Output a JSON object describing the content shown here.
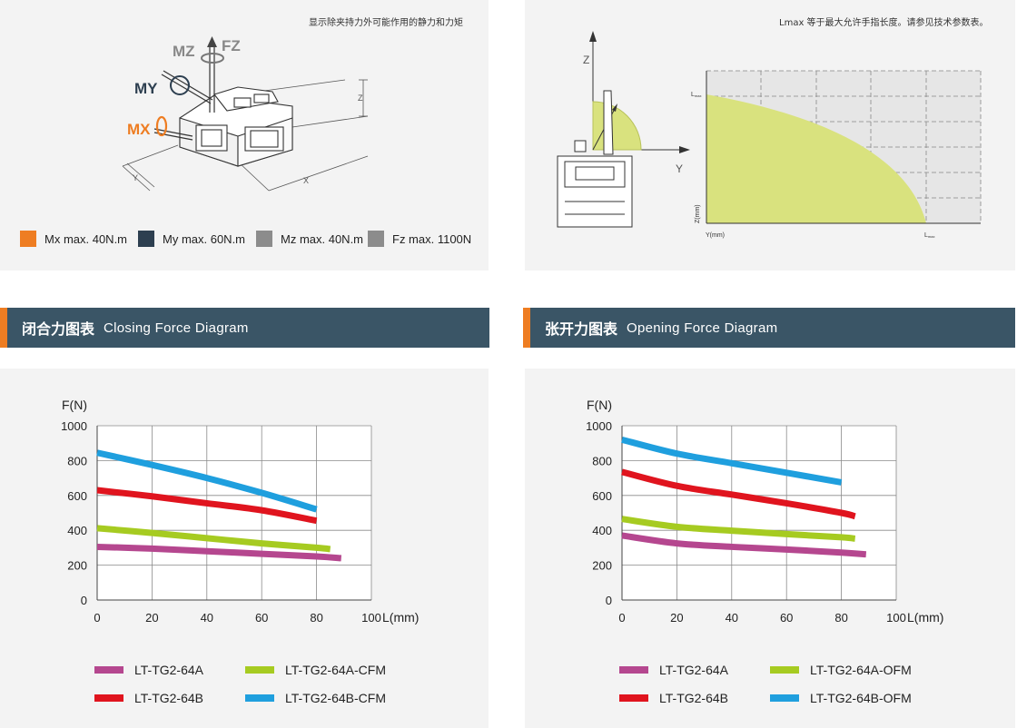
{
  "top_left": {
    "note": "显示除夹持力外可能作用的静力和力矩",
    "diagram_labels": {
      "mz": "MZ",
      "fz": "FZ",
      "my": "MY",
      "mx": "MX",
      "z": "Z",
      "y": "Y",
      "x": "X"
    },
    "legend": [
      {
        "label": "Mx max. 40N.m",
        "color": "#ee7d22"
      },
      {
        "label": "My max. 60N.m",
        "color": "#2d3f50"
      },
      {
        "label": "Mz max. 40N.m",
        "color": "#8c8c8c"
      },
      {
        "label": "Fz max. 1100N",
        "color": "#8c8c8c"
      }
    ]
  },
  "top_right": {
    "note": "Lmax 等于最大允许手指长度。请参见技术参数表。",
    "axis_z": "Z",
    "axis_y": "Y",
    "label_lmax_top": "L",
    "label_lmax_top_sub": "max",
    "label_lmax_right": "L",
    "label_lmax_right_sub": "max",
    "ylabel": "Z(mm)",
    "xlabel": "Y(mm)",
    "area_color": "#d9e27e"
  },
  "sections": {
    "closing": {
      "title_cn": "闭合力图表",
      "title_en": "Closing Force Diagram"
    },
    "opening": {
      "title_cn": "张开力图表",
      "title_en": "Opening Force Diagram"
    }
  },
  "chart_data": [
    {
      "type": "line",
      "title": "",
      "ylabel": "F(N)",
      "xlabel": "L(mm)",
      "xlim": [
        0,
        100
      ],
      "ylim": [
        0,
        1000
      ],
      "xticks": [
        "0",
        "20",
        "40",
        "60",
        "80",
        "100"
      ],
      "yticks": [
        "0",
        "200",
        "400",
        "600",
        "800",
        "1000"
      ],
      "grid": true,
      "series": [
        {
          "name": "LT-TG2-64A",
          "color": "#b5478f",
          "points": [
            [
              0,
              305
            ],
            [
              20,
              295
            ],
            [
              40,
              280
            ],
            [
              60,
              265
            ],
            [
              80,
              250
            ],
            [
              89,
              240
            ]
          ]
        },
        {
          "name": "LT-TG2-64A-CFM",
          "color": "#a6cb21",
          "points": [
            [
              0,
              412
            ],
            [
              20,
              385
            ],
            [
              40,
              355
            ],
            [
              60,
              325
            ],
            [
              80,
              300
            ],
            [
              85,
              292
            ]
          ]
        },
        {
          "name": "LT-TG2-64B",
          "color": "#e0141e",
          "points": [
            [
              0,
              630
            ],
            [
              20,
              595
            ],
            [
              40,
              555
            ],
            [
              60,
              515
            ],
            [
              80,
              455
            ]
          ]
        },
        {
          "name": "LT-TG2-64B-CFM",
          "color": "#1f9fde",
          "points": [
            [
              0,
              845
            ],
            [
              20,
              775
            ],
            [
              40,
              700
            ],
            [
              60,
              615
            ],
            [
              80,
              520
            ]
          ]
        }
      ]
    },
    {
      "type": "line",
      "title": "",
      "ylabel": "F(N)",
      "xlabel": "L(mm)",
      "xlim": [
        0,
        100
      ],
      "ylim": [
        0,
        1000
      ],
      "xticks": [
        "0",
        "20",
        "40",
        "60",
        "80",
        "100"
      ],
      "yticks": [
        "0",
        "200",
        "400",
        "600",
        "800",
        "1000"
      ],
      "grid": true,
      "series": [
        {
          "name": "LT-TG2-64A",
          "color": "#b5478f",
          "points": [
            [
              0,
              370
            ],
            [
              20,
              325
            ],
            [
              40,
              305
            ],
            [
              60,
              290
            ],
            [
              80,
              272
            ],
            [
              89,
              262
            ]
          ]
        },
        {
          "name": "LT-TG2-64A-OFM",
          "color": "#a6cb21",
          "points": [
            [
              0,
              465
            ],
            [
              20,
              420
            ],
            [
              40,
              398
            ],
            [
              60,
              378
            ],
            [
              80,
              360
            ],
            [
              85,
              352
            ]
          ]
        },
        {
          "name": "LT-TG2-64B",
          "color": "#e0141e",
          "points": [
            [
              0,
              735
            ],
            [
              20,
              655
            ],
            [
              40,
              605
            ],
            [
              60,
              555
            ],
            [
              80,
              500
            ],
            [
              85,
              480
            ]
          ]
        },
        {
          "name": "LT-TG2-64B-OFM",
          "color": "#1f9fde",
          "points": [
            [
              0,
              920
            ],
            [
              20,
              840
            ],
            [
              40,
              785
            ],
            [
              60,
              730
            ],
            [
              80,
              675
            ]
          ]
        }
      ]
    }
  ]
}
